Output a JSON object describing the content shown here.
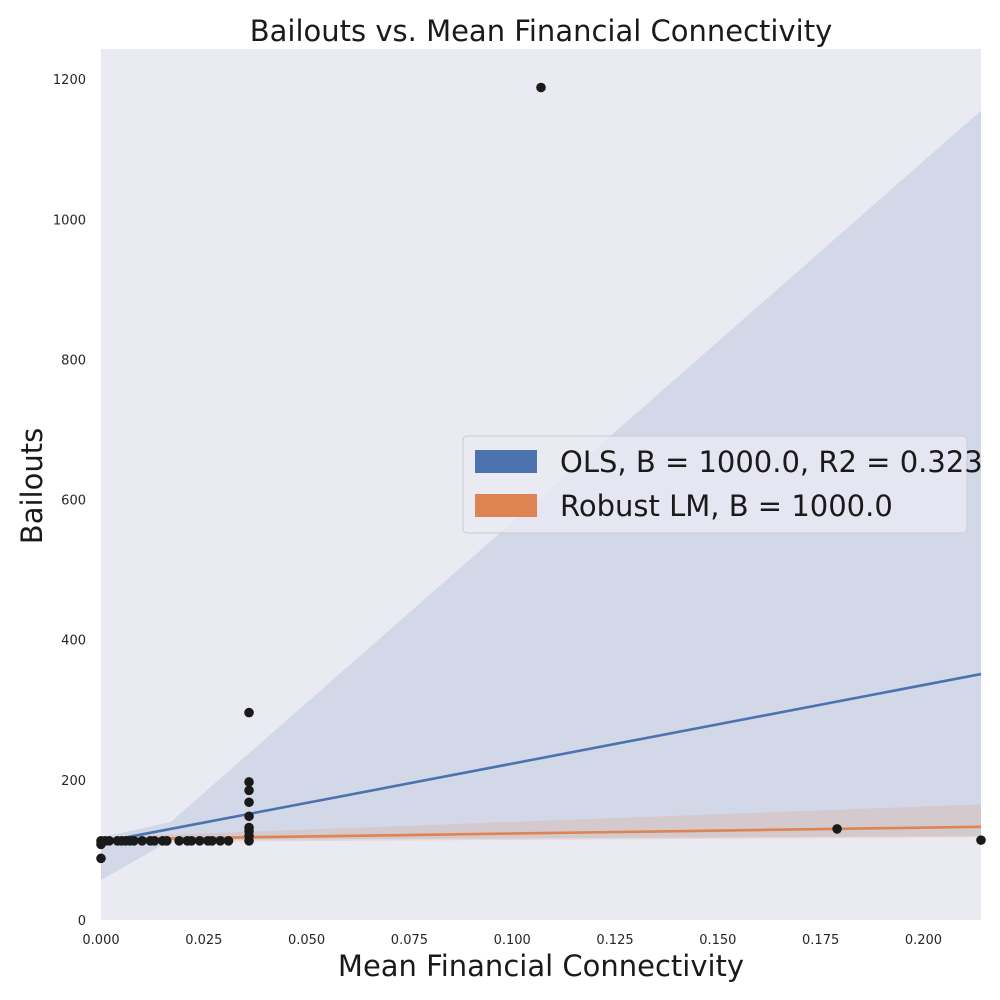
{
  "chart_data": {
    "type": "scatter",
    "title": "Bailouts vs. Mean Financial Connectivity",
    "xlabel": "Mean Financial Connectivity",
    "ylabel": "Bailouts",
    "xlim": [
      0.0,
      0.214
    ],
    "ylim": [
      0,
      1243
    ],
    "xticks": [
      "0.000",
      "0.025",
      "0.050",
      "0.075",
      "0.100",
      "0.125",
      "0.150",
      "0.175",
      "0.200"
    ],
    "yticks": [
      "0",
      "200",
      "400",
      "600",
      "800",
      "1000",
      "1200"
    ],
    "grid": false,
    "legend_placement": "center-right",
    "colors": {
      "background": "#eaeaf2",
      "points": "#1a1a1a",
      "ols": "#4c72b0",
      "robust": "#dd8452"
    },
    "points": [
      {
        "x": 0.0,
        "y": 88
      },
      {
        "x": 0.0,
        "y": 108
      },
      {
        "x": 0.0,
        "y": 113
      },
      {
        "x": 0.001,
        "y": 113
      },
      {
        "x": 0.002,
        "y": 113
      },
      {
        "x": 0.004,
        "y": 113
      },
      {
        "x": 0.005,
        "y": 113
      },
      {
        "x": 0.006,
        "y": 113
      },
      {
        "x": 0.007,
        "y": 113
      },
      {
        "x": 0.008,
        "y": 113
      },
      {
        "x": 0.01,
        "y": 113
      },
      {
        "x": 0.012,
        "y": 113
      },
      {
        "x": 0.013,
        "y": 113
      },
      {
        "x": 0.015,
        "y": 113
      },
      {
        "x": 0.016,
        "y": 113
      },
      {
        "x": 0.019,
        "y": 113
      },
      {
        "x": 0.021,
        "y": 113
      },
      {
        "x": 0.022,
        "y": 113
      },
      {
        "x": 0.024,
        "y": 113
      },
      {
        "x": 0.026,
        "y": 113
      },
      {
        "x": 0.027,
        "y": 113
      },
      {
        "x": 0.029,
        "y": 113
      },
      {
        "x": 0.031,
        "y": 113
      },
      {
        "x": 0.036,
        "y": 113
      },
      {
        "x": 0.036,
        "y": 120
      },
      {
        "x": 0.036,
        "y": 127
      },
      {
        "x": 0.036,
        "y": 132
      },
      {
        "x": 0.036,
        "y": 148
      },
      {
        "x": 0.036,
        "y": 168
      },
      {
        "x": 0.036,
        "y": 185
      },
      {
        "x": 0.036,
        "y": 197
      },
      {
        "x": 0.036,
        "y": 296
      },
      {
        "x": 0.107,
        "y": 1188
      },
      {
        "x": 0.179,
        "y": 130
      },
      {
        "x": 0.214,
        "y": 114
      }
    ],
    "series": [
      {
        "name": "OLS, B = 1000.0, R2 = 0.323",
        "kind": "regression",
        "x": [
          0.0,
          0.214
        ],
        "y": [
          111,
          351
        ],
        "ci_lower": [
          57,
          120
        ],
        "ci_upper": [
          118,
          1155
        ],
        "ci_mid_x": 0.017,
        "ci_mid_lower": [
          114
        ],
        "ci_mid_upper": [
          140
        ]
      },
      {
        "name": "Robust LM, B = 1000.0",
        "kind": "regression",
        "x": [
          0.0,
          0.214
        ],
        "y": [
          115,
          133
        ],
        "ci_lower": [
          111,
          118
        ],
        "ci_upper": [
          118,
          165
        ]
      }
    ]
  }
}
